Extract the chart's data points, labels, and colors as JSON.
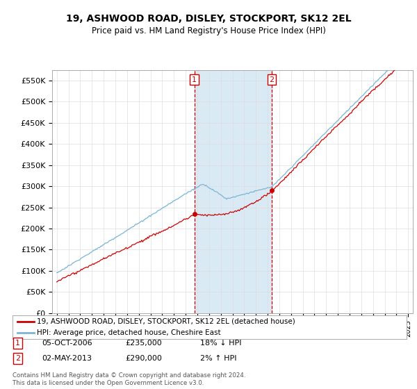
{
  "title": "19, ASHWOOD ROAD, DISLEY, STOCKPORT, SK12 2EL",
  "subtitle": "Price paid vs. HM Land Registry's House Price Index (HPI)",
  "legend_line1": "19, ASHWOOD ROAD, DISLEY, STOCKPORT, SK12 2EL (detached house)",
  "legend_line2": "HPI: Average price, detached house, Cheshire East",
  "transaction1_label": "1",
  "transaction1_date": "05-OCT-2006",
  "transaction1_price": "£235,000",
  "transaction1_hpi": "18% ↓ HPI",
  "transaction2_label": "2",
  "transaction2_date": "02-MAY-2013",
  "transaction2_price": "£290,000",
  "transaction2_hpi": "2% ↑ HPI",
  "footnote": "Contains HM Land Registry data © Crown copyright and database right 2024.\nThis data is licensed under the Open Government Licence v3.0.",
  "hpi_color": "#7ab4d8",
  "price_color": "#cc0000",
  "shaded_color": "#daeaf5",
  "vline_color": "#cc0000",
  "ylim": [
    0,
    575000
  ],
  "yticks": [
    0,
    50000,
    100000,
    150000,
    200000,
    250000,
    300000,
    350000,
    400000,
    450000,
    500000,
    550000
  ],
  "ytick_labels": [
    "£0",
    "£50K",
    "£100K",
    "£150K",
    "£200K",
    "£250K",
    "£300K",
    "£350K",
    "£400K",
    "£450K",
    "£500K",
    "£550K"
  ],
  "transaction1_x": 2006.75,
  "transaction2_x": 2013.35,
  "transaction1_y": 235000,
  "transaction2_y": 290000,
  "background_color": "#ffffff",
  "grid_color": "#dddddd",
  "xlim_left": 1994.6,
  "xlim_right": 2025.4
}
